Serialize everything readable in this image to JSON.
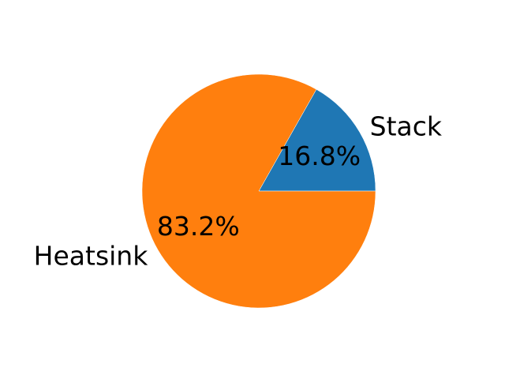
{
  "chart_data": {
    "type": "pie",
    "title": "",
    "slices": [
      {
        "label": "Stack",
        "value": 16.8,
        "pct_label": "16.8%",
        "color": "#1f77b4"
      },
      {
        "label": "Heatsink",
        "value": 83.2,
        "pct_label": "83.2%",
        "color": "#ff7f0e"
      }
    ],
    "start_angle_deg": 0,
    "direction": "counterclockwise",
    "edge_color": "#ffffff"
  }
}
